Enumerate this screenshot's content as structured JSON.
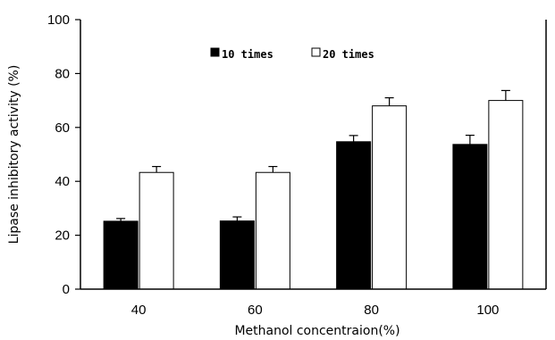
{
  "chart_data": {
    "type": "bar",
    "title": "",
    "xlabel": "Methanol concentraion(%)",
    "ylabel": "Lipase inhibitory activity (%)",
    "categories": [
      "40",
      "60",
      "80",
      "100"
    ],
    "ylim": [
      0,
      100
    ],
    "yticks": [
      "0",
      "20",
      "40",
      "60",
      "80",
      "100"
    ],
    "legend_position": "top-center",
    "grid": false,
    "series": [
      {
        "name": "10 times",
        "values": [
          25.2,
          25.3,
          54.7,
          53.7
        ],
        "errors": [
          1.0,
          1.5,
          2.3,
          3.4
        ],
        "color": "#000000"
      },
      {
        "name": "20 times",
        "values": [
          43.3,
          43.3,
          68.0,
          70.0
        ],
        "errors": [
          2.2,
          2.2,
          3.0,
          3.7
        ],
        "color": "#ffffff"
      }
    ]
  }
}
